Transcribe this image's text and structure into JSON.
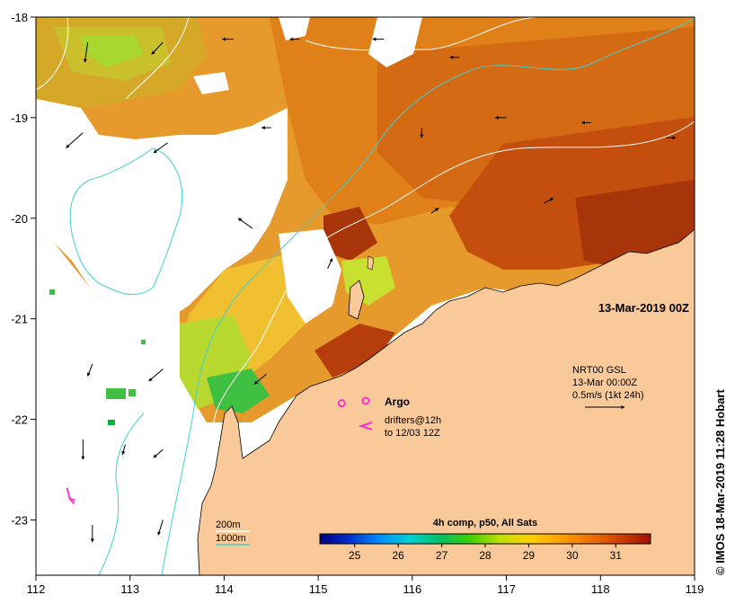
{
  "map": {
    "date_label": "13-Mar-2019 00Z",
    "credit": "© IMOS 18-Mar-2019 11:28 Hobart",
    "x_ticks": [
      {
        "value": 112,
        "label": "112"
      },
      {
        "value": 113,
        "label": "113"
      },
      {
        "value": 114,
        "label": "114"
      },
      {
        "value": 115,
        "label": "115"
      },
      {
        "value": 116,
        "label": "116"
      },
      {
        "value": 117,
        "label": "117"
      },
      {
        "value": 118,
        "label": "118"
      },
      {
        "value": 119,
        "label": "119"
      }
    ],
    "y_ticks": [
      {
        "value": -18,
        "label": "-18"
      },
      {
        "value": -19,
        "label": "-19"
      },
      {
        "value": -20,
        "label": "-20"
      },
      {
        "value": -21,
        "label": "-21"
      },
      {
        "value": -22,
        "label": "-22"
      },
      {
        "value": -23,
        "label": "-23"
      }
    ],
    "xlim": [
      112,
      119
    ],
    "ylim": [
      -23.55,
      -18
    ],
    "colors": {
      "land": "#f9c99a",
      "coast": "#000000",
      "isobath_200": "#ffffff",
      "isobath_1000": "#3fd0d0",
      "argo": "#ff33cc",
      "drifter": "#ff33cc",
      "current_arrow": "#000000",
      "sst_warm": "#c0460a",
      "sst_mid": "#e8941a",
      "sst_cool": "#a8e030"
    }
  },
  "legend": {
    "argo_label": "Argo",
    "drifters_label_1": "drifters@12h",
    "drifters_label_2": "to 12/03 12Z",
    "isobath_200_label": "200m",
    "isobath_1000_label": "1000m",
    "gsl_label_1": "NRT00 GSL",
    "gsl_label_2": "13-Mar 00:00Z",
    "gsl_label_3": "0.5m/s (1kt 24h)"
  },
  "colorbar": {
    "title": "4h comp, p50, All Sats",
    "ticks": [
      "25",
      "26",
      "27",
      "28",
      "29",
      "30",
      "31"
    ],
    "range": [
      24.2,
      31.8
    ],
    "colors": [
      "#00007f",
      "#0030d0",
      "#0090ff",
      "#00d0d0",
      "#00c060",
      "#40d000",
      "#c0e000",
      "#ffd000",
      "#ffa000",
      "#f07000",
      "#d04000",
      "#a01000"
    ]
  },
  "argo_floats": [
    {
      "lon": 115.25,
      "lat": -21.84
    }
  ],
  "drifters": [
    {
      "lon": 112.33,
      "lat": -22.68
    }
  ],
  "currents": [
    {
      "lon": 112.55,
      "lat": -18.25,
      "dx": -0.03,
      "dy": -0.2
    },
    {
      "lon": 113.35,
      "lat": -18.25,
      "dx": -0.12,
      "dy": -0.12
    },
    {
      "lon": 114.1,
      "lat": -18.22,
      "dx": -0.12,
      "dy": 0.0
    },
    {
      "lon": 114.8,
      "lat": -18.22,
      "dx": -0.1,
      "dy": 0.0
    },
    {
      "lon": 115.7,
      "lat": -18.22,
      "dx": -0.12,
      "dy": 0.0
    },
    {
      "lon": 116.5,
      "lat": -18.4,
      "dx": -0.1,
      "dy": 0.0
    },
    {
      "lon": 112.5,
      "lat": -19.15,
      "dx": -0.18,
      "dy": -0.15
    },
    {
      "lon": 113.4,
      "lat": -19.25,
      "dx": -0.15,
      "dy": -0.1
    },
    {
      "lon": 114.5,
      "lat": -19.1,
      "dx": -0.1,
      "dy": 0.0
    },
    {
      "lon": 116.1,
      "lat": -19.1,
      "dx": 0.0,
      "dy": -0.1
    },
    {
      "lon": 117.0,
      "lat": -19.0,
      "dx": -0.12,
      "dy": 0.0
    },
    {
      "lon": 117.9,
      "lat": -19.05,
      "dx": -0.1,
      "dy": 0.0
    },
    {
      "lon": 118.7,
      "lat": -19.2,
      "dx": 0.1,
      "dy": 0.0
    },
    {
      "lon": 114.3,
      "lat": -20.1,
      "dx": -0.15,
      "dy": 0.1
    },
    {
      "lon": 115.1,
      "lat": -20.5,
      "dx": 0.05,
      "dy": 0.1
    },
    {
      "lon": 116.2,
      "lat": -19.95,
      "dx": 0.08,
      "dy": 0.05
    },
    {
      "lon": 117.4,
      "lat": -19.85,
      "dx": 0.1,
      "dy": 0.05
    },
    {
      "lon": 112.6,
      "lat": -21.45,
      "dx": -0.05,
      "dy": -0.12
    },
    {
      "lon": 113.35,
      "lat": -21.5,
      "dx": -0.15,
      "dy": -0.12
    },
    {
      "lon": 114.45,
      "lat": -21.55,
      "dx": -0.13,
      "dy": -0.1
    },
    {
      "lon": 112.5,
      "lat": -22.2,
      "dx": 0.0,
      "dy": -0.2
    },
    {
      "lon": 112.95,
      "lat": -22.25,
      "dx": -0.03,
      "dy": -0.1
    },
    {
      "lon": 113.35,
      "lat": -22.3,
      "dx": -0.1,
      "dy": -0.08
    },
    {
      "lon": 112.6,
      "lat": -23.05,
      "dx": 0.0,
      "dy": -0.17
    },
    {
      "lon": 113.35,
      "lat": -23.0,
      "dx": -0.05,
      "dy": -0.15
    }
  ]
}
